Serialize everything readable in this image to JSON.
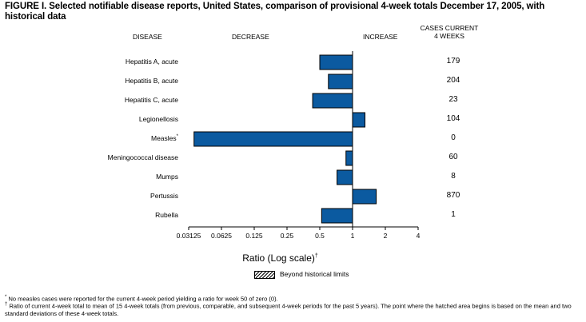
{
  "title": "FIGURE I. Selected notifiable disease reports, United States, comparison of provisional 4-week totals December 17, 2005, with historical data",
  "headers": {
    "disease": "DISEASE",
    "decrease": "DECREASE",
    "increase": "INCREASE",
    "cases_line1": "CASES CURRENT",
    "cases_line2": "4 WEEKS"
  },
  "colors": {
    "bar_fill": "#0b5aa0",
    "bar_stroke": "#000000"
  },
  "chart_data": {
    "type": "bar",
    "orientation": "horizontal",
    "scale": "log2",
    "baseline": 1,
    "categories": [
      "Hepatitis A, acute",
      "Hepatitis B, acute",
      "Hepatitis C, acute",
      "Legionellosis",
      "Measles",
      "Meningococcal disease",
      "Mumps",
      "Pertussis",
      "Rubella"
    ],
    "category_marks": [
      "",
      "",
      "",
      "",
      "*",
      "",
      "",
      "",
      ""
    ],
    "values": [
      0.5,
      0.6,
      0.43,
      1.3,
      0.035,
      0.87,
      0.72,
      1.65,
      0.52
    ],
    "cases": [
      "179",
      "204",
      "23",
      "104",
      "0",
      "60",
      "8",
      "870",
      "1"
    ],
    "ticks": [
      0.03125,
      0.0625,
      0.125,
      0.25,
      0.5,
      1,
      2,
      4
    ],
    "tick_labels": [
      "0.03125",
      "0.0625",
      "0.125",
      "0.25",
      "0.5",
      "1",
      "2",
      "4"
    ],
    "xlim": [
      0.03125,
      4
    ],
    "xlabel": "Ratio (Log scale)",
    "xlabel_mark": "†",
    "legend": "Beyond historical limits"
  },
  "footnotes": [
    {
      "mark": "*",
      "text": "No measles cases were reported for the current 4-week period yielding a ratio for week 50 of zero (0)."
    },
    {
      "mark": "†",
      "text": "Ratio of current 4-week total to mean of 15 4-week totals (from previous, comparable, and subsequent 4-week periods for the past 5 years). The point where the hatched area begins is based on the mean and two standard deviations of these 4-week totals."
    }
  ]
}
